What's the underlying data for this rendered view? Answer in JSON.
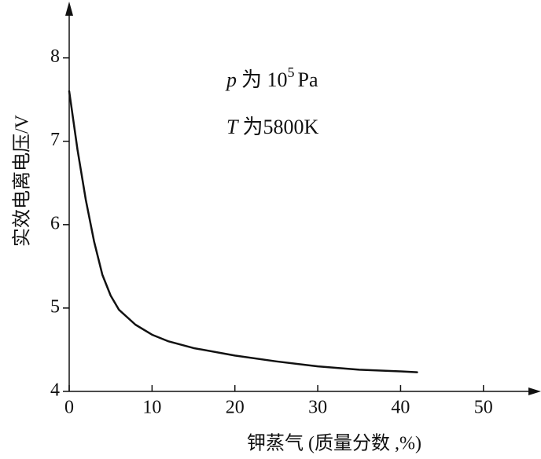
{
  "chart_data": {
    "type": "line",
    "ylabel": "实效电离电压/V",
    "xlabel": "钾蒸气 (质量分数 ,%)",
    "annotations": [
      [
        "p",
        "为 10",
        "5",
        "Pa"
      ],
      [
        "T",
        "为5800K"
      ]
    ],
    "x": [
      0,
      1,
      2,
      3,
      4,
      5,
      6,
      8,
      10,
      12,
      15,
      20,
      25,
      30,
      35,
      40,
      42
    ],
    "series": [
      {
        "color": "#111111",
        "values": [
          7.6,
          6.9,
          6.3,
          5.8,
          5.4,
          5.15,
          4.98,
          4.8,
          4.68,
          4.6,
          4.52,
          4.43,
          4.36,
          4.3,
          4.26,
          4.24,
          4.23
        ]
      }
    ],
    "xlim": [
      0,
      56
    ],
    "ylim": [
      4,
      8.6
    ],
    "xticks": [
      0,
      10,
      20,
      30,
      40,
      50
    ],
    "yticks": [
      4,
      5,
      6,
      7,
      8
    ]
  }
}
